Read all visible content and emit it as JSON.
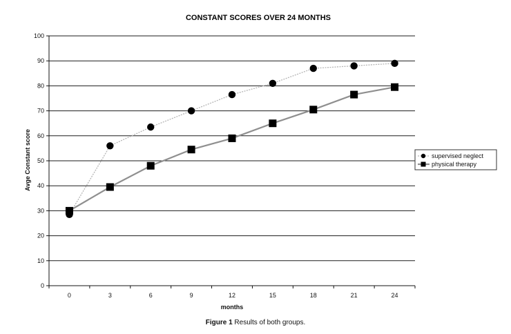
{
  "chart_data": {
    "type": "line",
    "title": "CONSTANT SCORES OVER 24 MONTHS",
    "xlabel": "months",
    "ylabel": "Avge Constant score",
    "categories": [
      "0",
      "3",
      "6",
      "9",
      "12",
      "15",
      "18",
      "21",
      "24"
    ],
    "ylim": [
      0,
      100
    ],
    "yticks": [
      0,
      10,
      20,
      30,
      40,
      50,
      60,
      70,
      80,
      90,
      100
    ],
    "grid": true,
    "legend_position": "right",
    "series": [
      {
        "name": "supervised neglect",
        "marker": "circle",
        "line_color": "#b5b5b5",
        "values": [
          28.5,
          56,
          63.5,
          70,
          76.5,
          81,
          87,
          88,
          89
        ]
      },
      {
        "name": "physical therapy",
        "marker": "square",
        "line_color": "#8f8f8f",
        "values": [
          30,
          39.5,
          48,
          54.5,
          59,
          65,
          70.5,
          76.5,
          79.5
        ]
      }
    ]
  },
  "caption": {
    "label": "Figure 1",
    "text": "Results of both groups."
  }
}
